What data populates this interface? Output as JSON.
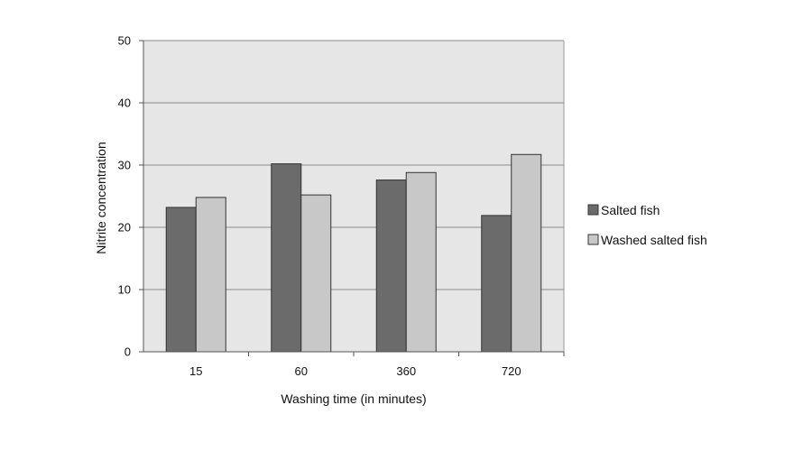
{
  "chart_data": {
    "type": "bar",
    "categories": [
      "15",
      "60",
      "360",
      "720"
    ],
    "series": [
      {
        "name": "Salted fish",
        "values": [
          23.2,
          30.2,
          27.6,
          21.9
        ],
        "color": "#6b6b6b"
      },
      {
        "name": "Washed salted fish",
        "values": [
          24.8,
          25.2,
          28.8,
          31.7
        ],
        "color": "#c8c8c8"
      }
    ],
    "title": "",
    "xlabel": "Washing time (in minutes)",
    "ylabel": "Nitrite concentration",
    "ylim": [
      0,
      50
    ],
    "yticks": [
      0,
      10,
      20,
      30,
      40,
      50
    ],
    "grid": true,
    "legend_position": "right",
    "plot_background": "#e6e6e6",
    "bar_outline": "#333333"
  }
}
